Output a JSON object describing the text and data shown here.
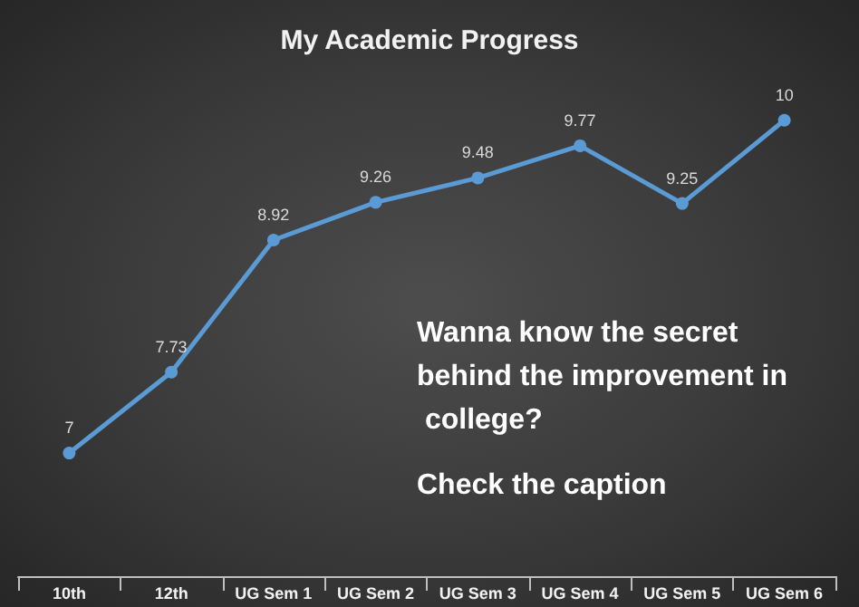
{
  "chart_data": {
    "type": "line",
    "title": "My Academic Progress",
    "categories": [
      "10th",
      "12th",
      "UG Sem 1",
      "UG Sem 2",
      "UG Sem 3",
      "UG Sem 4",
      "UG Sem 5",
      "UG Sem 6"
    ],
    "series": [
      {
        "color": "#5b9bd5",
        "values": [
          7,
          7.73,
          8.92,
          9.26,
          9.48,
          9.77,
          9.25,
          10
        ]
      }
    ],
    "data_labels": true,
    "marker": "circle",
    "line_style": "solid",
    "grid": false,
    "tick_labels": "x",
    "annotations": [
      "Wanna know the secret behind the improvement in college?",
      "Check the caption"
    ]
  }
}
